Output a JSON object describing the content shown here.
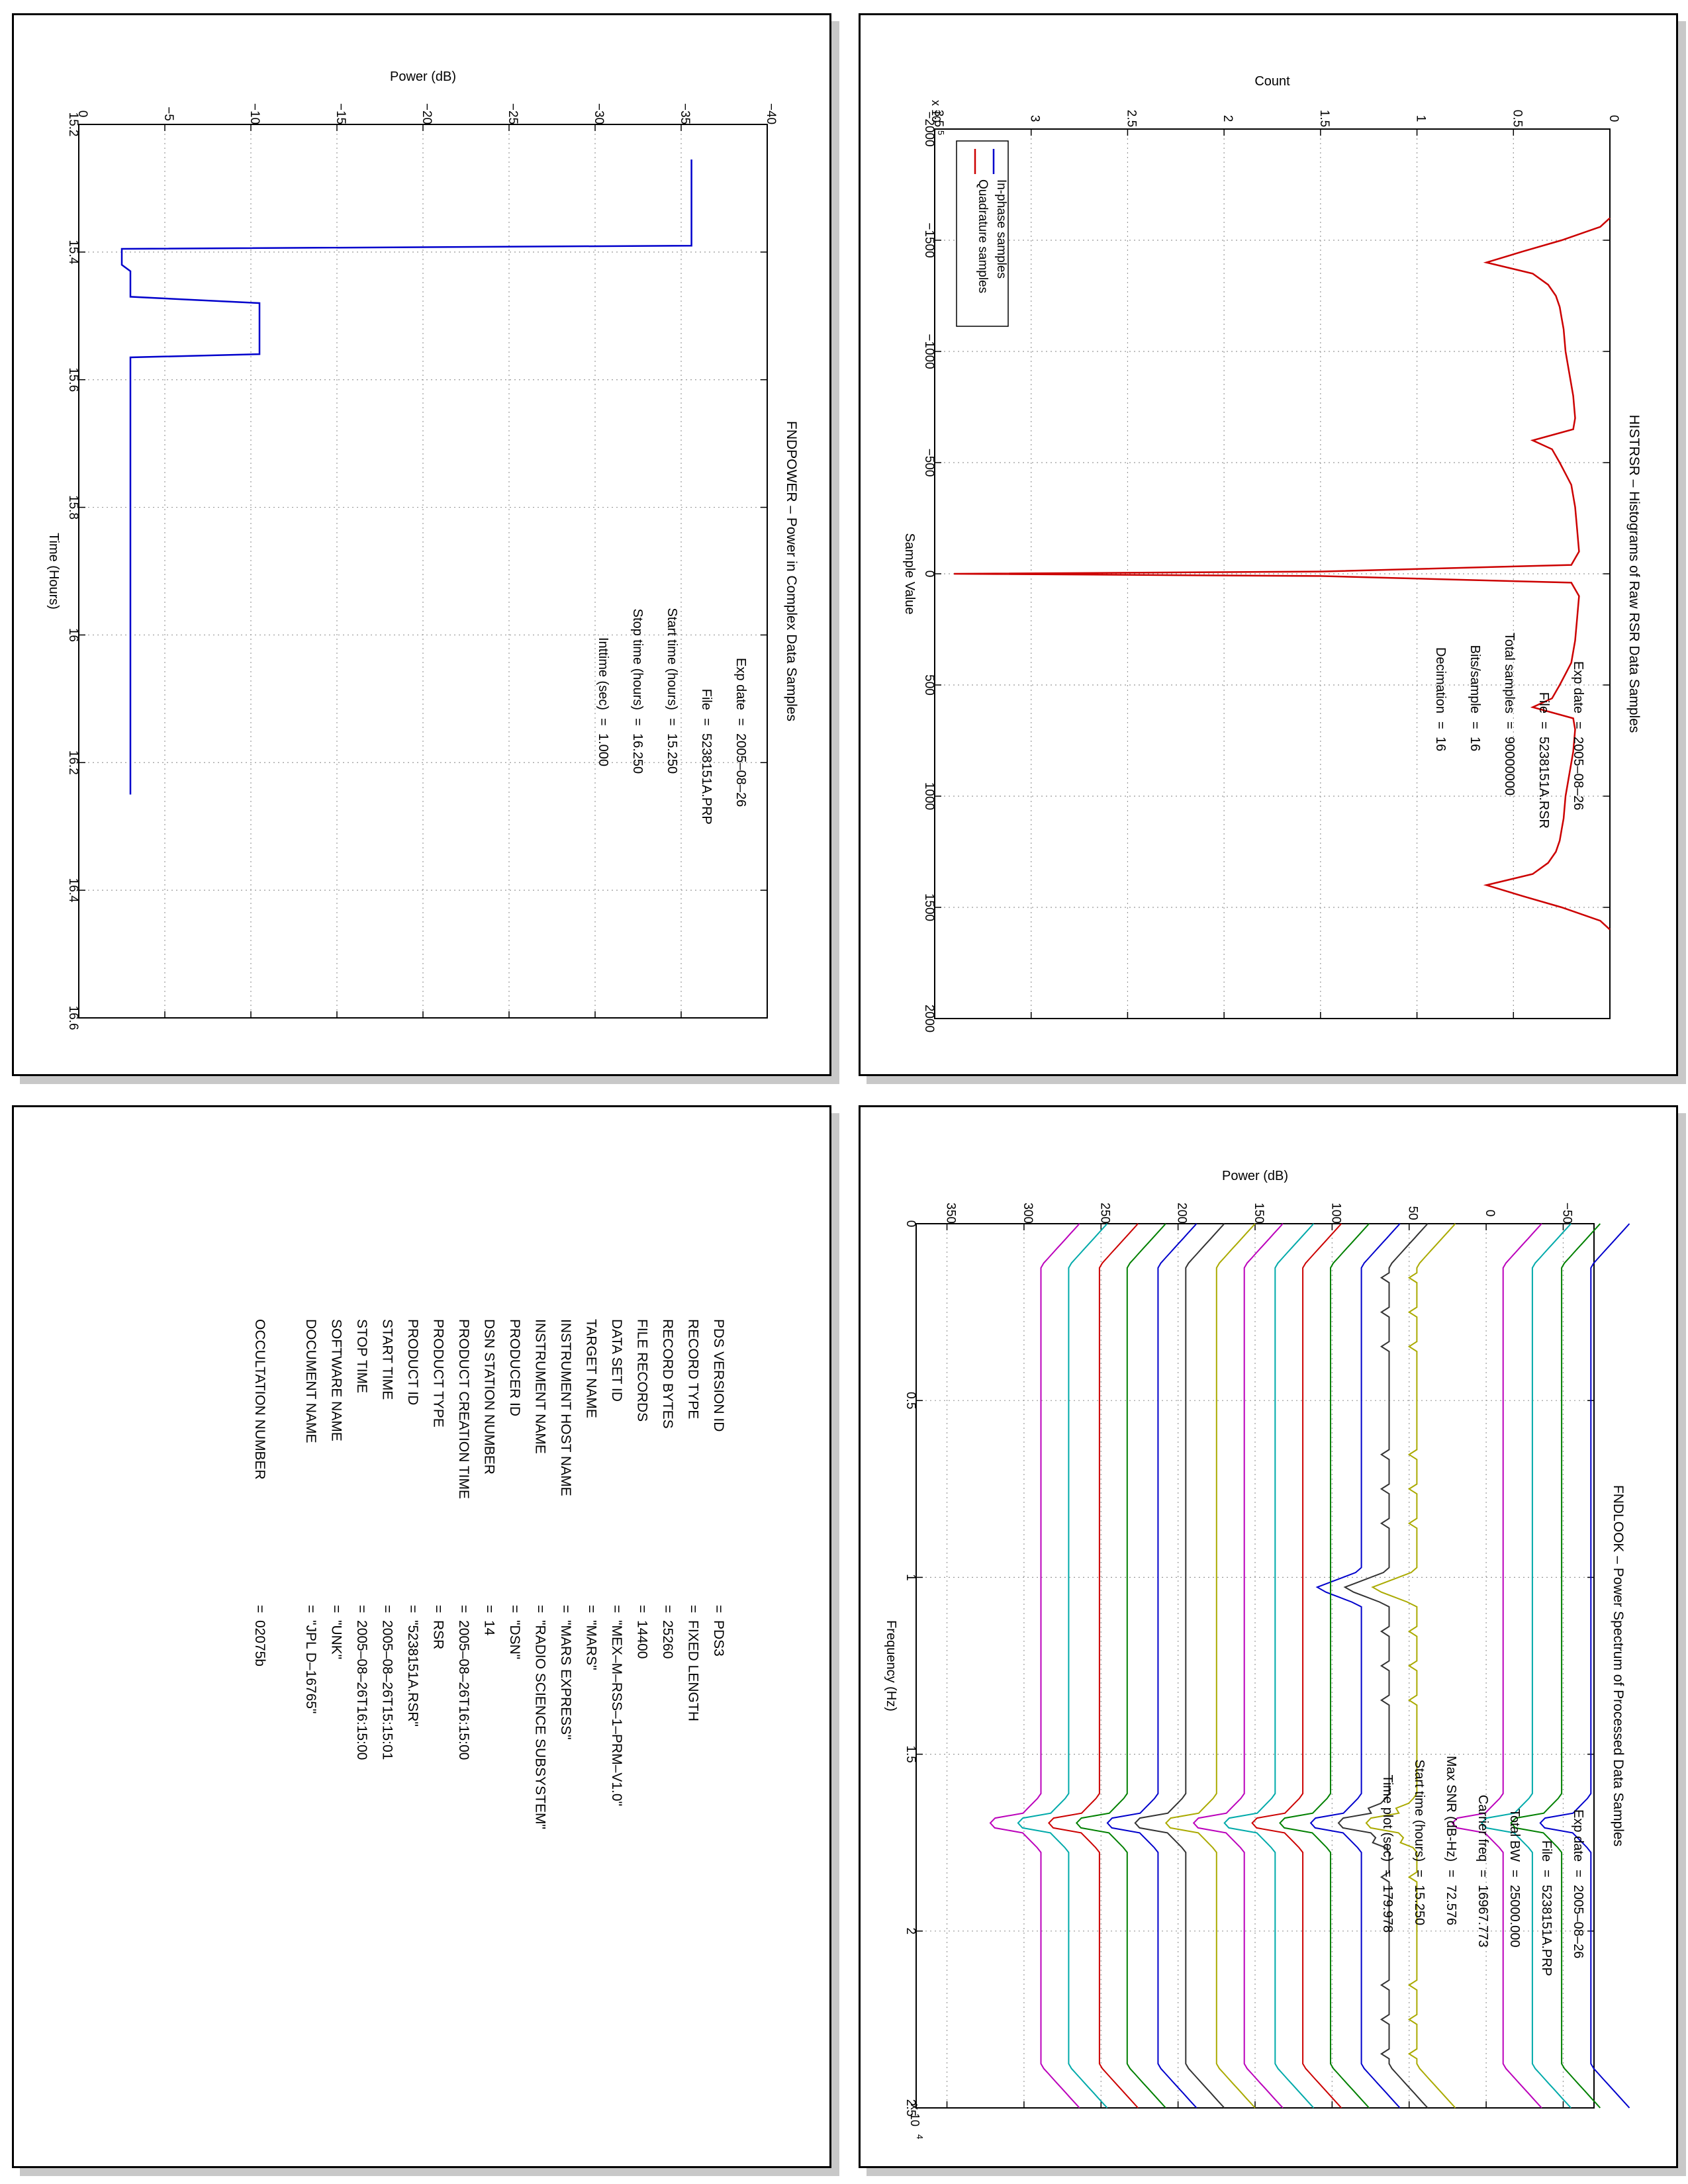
{
  "charts": [
    {
      "id": "fndpower",
      "type": "line",
      "title": "FNDPOWER – Power in Complex Data Samples",
      "xlabel": "Time (Hours)",
      "ylabel": "Power (dB)",
      "xlim": [
        15.2,
        16.6
      ],
      "ylim": [
        -40,
        0
      ],
      "xticks": [
        15.2,
        15.4,
        15.6,
        15.8,
        16,
        16.2,
        16.4,
        16.6
      ],
      "yticks": [
        -40,
        -35,
        -30,
        -25,
        -20,
        -15,
        -10,
        -5,
        0
      ],
      "grid": true,
      "series": [
        {
          "color": "#0000cc",
          "x": [
            15.255,
            15.3,
            15.35,
            15.39,
            15.395,
            15.42,
            15.43,
            15.44,
            15.47,
            15.48,
            15.5,
            15.55,
            15.56,
            15.565,
            15.6,
            15.7,
            15.8,
            15.9,
            16.0,
            16.1,
            16.2,
            16.25
          ],
          "y": [
            -35.6,
            -35.6,
            -35.6,
            -35.6,
            -2.5,
            -2.5,
            -3.0,
            -3.0,
            -3.0,
            -10.5,
            -10.5,
            -10.5,
            -10.5,
            -3.0,
            -3.0,
            -3.0,
            -3.0,
            -3.0,
            -3.0,
            -3.0,
            -3.0,
            -3.0
          ]
        }
      ],
      "annotations": [
        {
          "label": "Exp date",
          "value": "2005–08–26"
        },
        {
          "label": "File",
          "value": "5238151A.PRP"
        },
        {
          "label": "Start time (hours)",
          "value": "15.250"
        },
        {
          "label": "Stop time (hours)",
          "value": "16.250"
        },
        {
          "label": "Inttime (sec)",
          "value": "1.000"
        }
      ]
    },
    {
      "id": "histrsr",
      "type": "line",
      "title": "HISTRSR – Histograms of Raw RSR Data Samples",
      "xlabel": "Sample Value",
      "ylabel": "Count",
      "y_multiplier": "x 10^5",
      "xlim": [
        -2000,
        2000
      ],
      "ylim": [
        0,
        3.5
      ],
      "xticks": [
        -2000,
        -1500,
        -1000,
        -500,
        0,
        500,
        1000,
        1500,
        2000
      ],
      "yticks": [
        0,
        0.5,
        1,
        1.5,
        2,
        2.5,
        3,
        3.5
      ],
      "grid": true,
      "legend": {
        "placement": "top-right",
        "items": [
          {
            "name": "In-phase samples",
            "color": "#0000cc"
          },
          {
            "name": "Quadrature samples",
            "color": "#cc0000"
          }
        ]
      },
      "series": [
        {
          "name": "Quadrature samples",
          "color": "#cc0000",
          "x": [
            -1600,
            -1560,
            -1500,
            -1450,
            -1400,
            -1350,
            -1300,
            -1250,
            -1200,
            -1150,
            -1100,
            -1000,
            -900,
            -800,
            -700,
            -650,
            -600,
            -560,
            -500,
            -450,
            -400,
            -300,
            -200,
            -100,
            -40,
            -10,
            0,
            10,
            40,
            100,
            200,
            300,
            400,
            450,
            500,
            560,
            600,
            650,
            700,
            800,
            900,
            1000,
            1100,
            1150,
            1200,
            1250,
            1300,
            1350,
            1400,
            1450,
            1500,
            1560,
            1600
          ],
          "y": [
            0,
            0.05,
            0.25,
            0.45,
            0.64,
            0.4,
            0.32,
            0.28,
            0.26,
            0.25,
            0.24,
            0.23,
            0.21,
            0.19,
            0.18,
            0.19,
            0.4,
            0.3,
            0.26,
            0.23,
            0.2,
            0.18,
            0.17,
            0.16,
            0.2,
            1.5,
            3.4,
            1.5,
            0.2,
            0.16,
            0.17,
            0.18,
            0.2,
            0.23,
            0.26,
            0.3,
            0.4,
            0.19,
            0.18,
            0.19,
            0.21,
            0.23,
            0.24,
            0.25,
            0.26,
            0.28,
            0.32,
            0.4,
            0.64,
            0.45,
            0.25,
            0.05,
            0
          ]
        }
      ],
      "annotations": [
        {
          "label": "Exp date",
          "value": "2005–08–26"
        },
        {
          "label": "File",
          "value": "5238151A.RSR"
        },
        {
          "label": "Total samples",
          "value": "90000000"
        },
        {
          "label": "Bits/sample",
          "value": "16"
        },
        {
          "label": "Decimation",
          "value": "16"
        }
      ]
    },
    {
      "id": "fndlook",
      "type": "line",
      "title": "FNDLOOK – Power Spectrum of Processed Data Samples",
      "xlabel": "Frequency (Hz)",
      "ylabel": "Power (dB)",
      "x_multiplier": "x 10^4",
      "xlim": [
        0,
        2.5
      ],
      "ylim": [
        -70,
        370
      ],
      "xticks": [
        0,
        0.5,
        1,
        1.5,
        2,
        2.5
      ],
      "yticks": [
        -50,
        0,
        50,
        100,
        150,
        200,
        250,
        300,
        350
      ],
      "grid": true,
      "series": [
        {
          "color": "#0000cc",
          "y": -68
        },
        {
          "color": "#008000",
          "y": -49
        },
        {
          "color": "#00aaaa",
          "y": -30
        },
        {
          "color": "#bb00bb",
          "y": -11
        },
        {
          "color": "#aaaa00",
          "y": 45
        },
        {
          "color": "#333333",
          "y": 63
        },
        {
          "color": "#0000cc",
          "y": 81
        },
        {
          "color": "#008000",
          "y": 101
        },
        {
          "color": "#cc0000",
          "y": 119
        },
        {
          "color": "#00aaaa",
          "y": 137
        },
        {
          "color": "#bb00bb",
          "y": 157
        },
        {
          "color": "#aaaa00",
          "y": 175
        },
        {
          "color": "#333333",
          "y": 195
        },
        {
          "color": "#0000cc",
          "y": 213
        },
        {
          "color": "#008000",
          "y": 233
        },
        {
          "color": "#cc0000",
          "y": 251
        },
        {
          "color": "#00aaaa",
          "y": 271
        },
        {
          "color": "#bb00bb",
          "y": 289
        }
      ],
      "annotations": [
        {
          "label": "Exp date",
          "value": "2005–08–26"
        },
        {
          "label": "File",
          "value": "5238151A.PRP"
        },
        {
          "label": "Total BW",
          "value": "25000.000"
        },
        {
          "label": "Carrier freq",
          "value": "16967.773"
        },
        {
          "label": "Max SNR (dB-Hz)",
          "value": "72.576"
        },
        {
          "label": "Start time (hours)",
          "value": "15.250"
        },
        {
          "label": "Time plot (sec)",
          "value": "179.978"
        }
      ]
    }
  ],
  "pds_label": [
    {
      "key": "PDS VERSION ID",
      "value": "PDS3"
    },
    {
      "key": "RECORD TYPE",
      "value": "FIXED LENGTH"
    },
    {
      "key": "RECORD BYTES",
      "value": "25260"
    },
    {
      "key": "FILE RECORDS",
      "value": "14400"
    },
    {
      "key": "DATA SET ID",
      "value": "\"MEX–M–RSS–1–PRM–V1.0\""
    },
    {
      "key": "TARGET NAME",
      "value": "\"MARS\""
    },
    {
      "key": "INSTRUMENT HOST NAME",
      "value": "\"MARS EXPRESS\""
    },
    {
      "key": "INSTRUMENT NAME",
      "value": "\"RADIO SCIENCE SUBSYSTEM\""
    },
    {
      "key": "PRODUCER ID",
      "value": "\"DSN\""
    },
    {
      "key": "DSN STATION NUMBER",
      "value": "14"
    },
    {
      "key": "PRODUCT CREATION TIME",
      "value": "2005–08–26T16:15:00"
    },
    {
      "key": "PRODUCT TYPE",
      "value": "RSR"
    },
    {
      "key": "PRODUCT ID",
      "value": "\"5238151A.RSR\""
    },
    {
      "key": "START TIME",
      "value": "2005–08–26T15:15:01"
    },
    {
      "key": "STOP TIME",
      "value": "2005–08–26T16:15:00"
    },
    {
      "key": "SOFTWARE NAME",
      "value": "\"UNK\""
    },
    {
      "key": "DOCUMENT NAME",
      "value": "\"JPL D–16765\""
    },
    {
      "key": "",
      "value": ""
    },
    {
      "key": "OCCULTATION NUMBER",
      "value": "02075b"
    }
  ],
  "equals_sign": "=",
  "multiplier_base": "x 10",
  "exp5": "5",
  "exp4": "4"
}
